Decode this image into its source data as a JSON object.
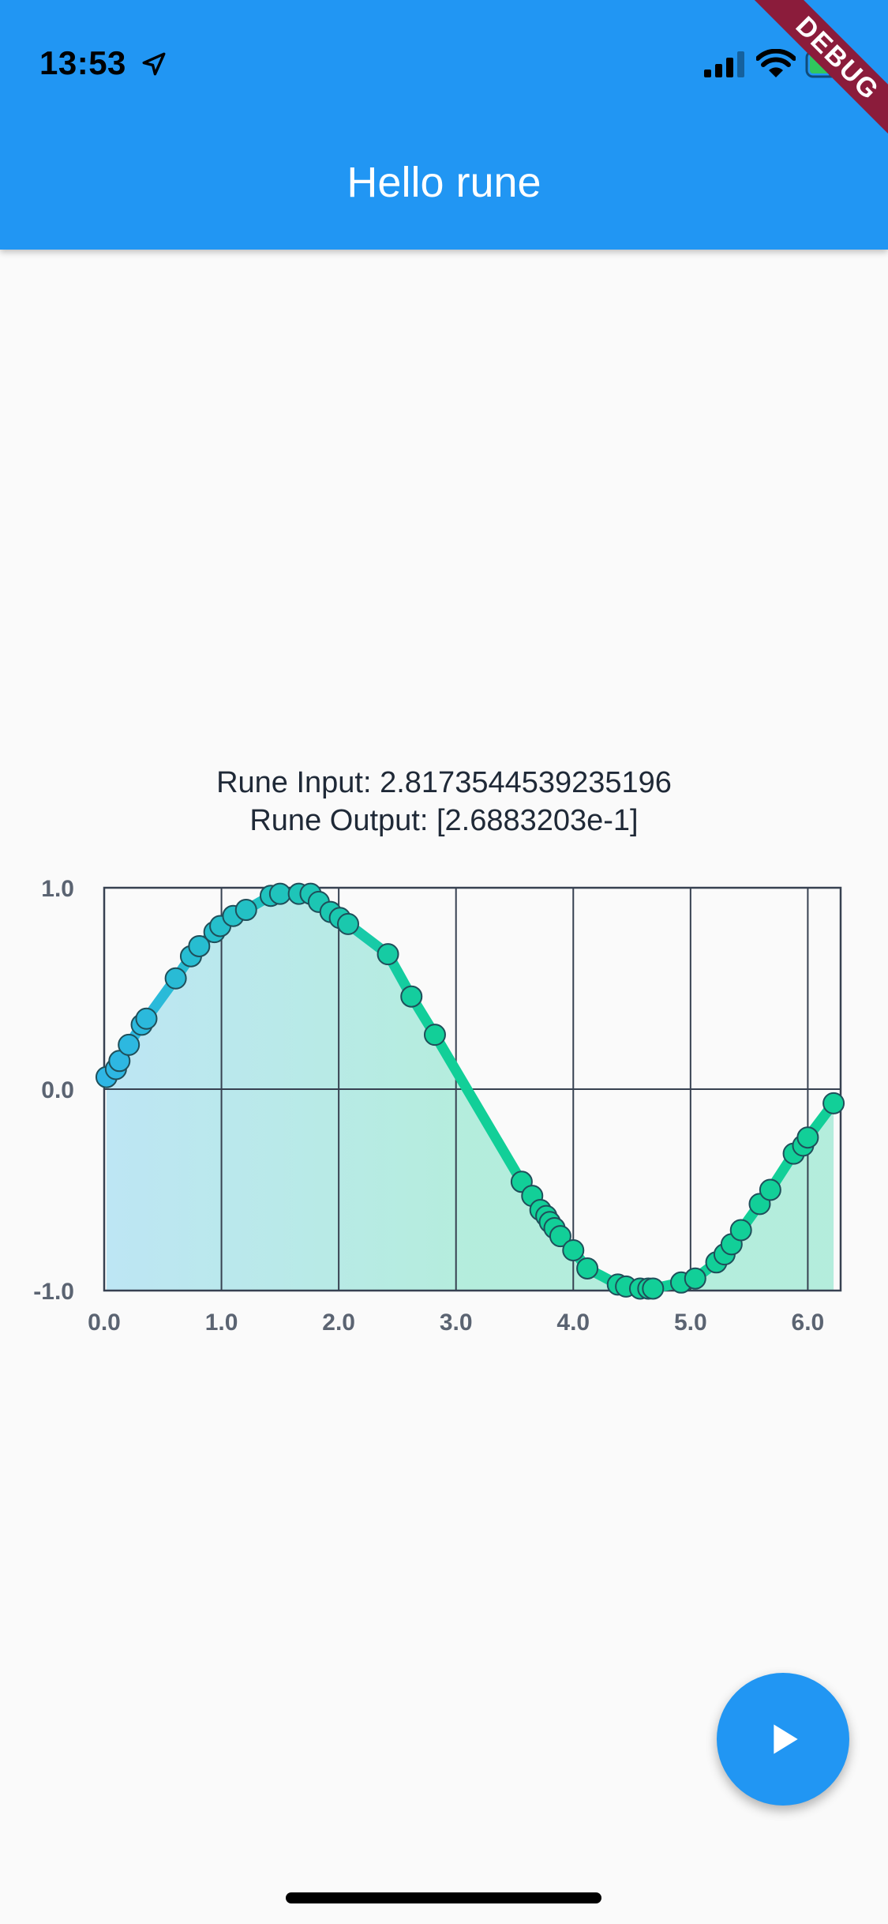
{
  "status_bar": {
    "time": "13:53"
  },
  "debug_banner": "DEBUG",
  "app_bar": {
    "title": "Hello rune"
  },
  "rune": {
    "input_text": "Rune Input: 2.8173544539235196",
    "output_text": "Rune Output: [2.6883203e-1]"
  },
  "colors": {
    "primary": "#2196f3",
    "line_start": "#2fb6e6",
    "line_end": "#12cf98",
    "grid": "#374151"
  },
  "fab": {
    "icon": "play-icon"
  },
  "chart_data": {
    "type": "line",
    "title": "",
    "xlabel": "",
    "ylabel": "",
    "xlim": [
      0,
      6.28
    ],
    "ylim": [
      -1,
      1
    ],
    "x_ticks": [
      "0.0",
      "1.0",
      "2.0",
      "3.0",
      "4.0",
      "5.0",
      "6.0"
    ],
    "y_ticks": [
      "1.0",
      "0.0",
      "-1.0"
    ],
    "grid": true,
    "legend": "none",
    "series": [
      {
        "x": [
          0.02,
          0.1,
          0.13,
          0.21,
          0.32,
          0.36,
          0.61,
          0.74,
          0.81,
          0.94,
          0.99,
          1.1,
          1.21,
          1.42,
          1.5,
          1.66,
          1.76,
          1.83,
          1.93,
          2.01,
          2.08,
          2.42,
          2.62,
          2.82,
          3.56,
          3.65,
          3.72,
          3.77,
          3.8,
          3.84,
          3.89,
          4.0,
          4.12,
          4.38,
          4.45,
          4.57,
          4.64,
          4.68,
          4.92,
          5.04,
          5.22,
          5.29,
          5.35,
          5.43,
          5.59,
          5.68,
          5.88,
          5.96,
          6.0,
          6.22
        ],
        "y": [
          0.06,
          0.1,
          0.14,
          0.22,
          0.32,
          0.35,
          0.55,
          0.66,
          0.71,
          0.78,
          0.81,
          0.86,
          0.89,
          0.96,
          0.97,
          0.97,
          0.97,
          0.93,
          0.88,
          0.85,
          0.82,
          0.67,
          0.46,
          0.27,
          -0.46,
          -0.53,
          -0.6,
          -0.63,
          -0.66,
          -0.69,
          -0.73,
          -0.8,
          -0.89,
          -0.97,
          -0.98,
          -0.99,
          -0.99,
          -0.99,
          -0.96,
          -0.94,
          -0.86,
          -0.82,
          -0.77,
          -0.7,
          -0.57,
          -0.5,
          -0.32,
          -0.28,
          -0.24,
          -0.07
        ]
      }
    ]
  }
}
